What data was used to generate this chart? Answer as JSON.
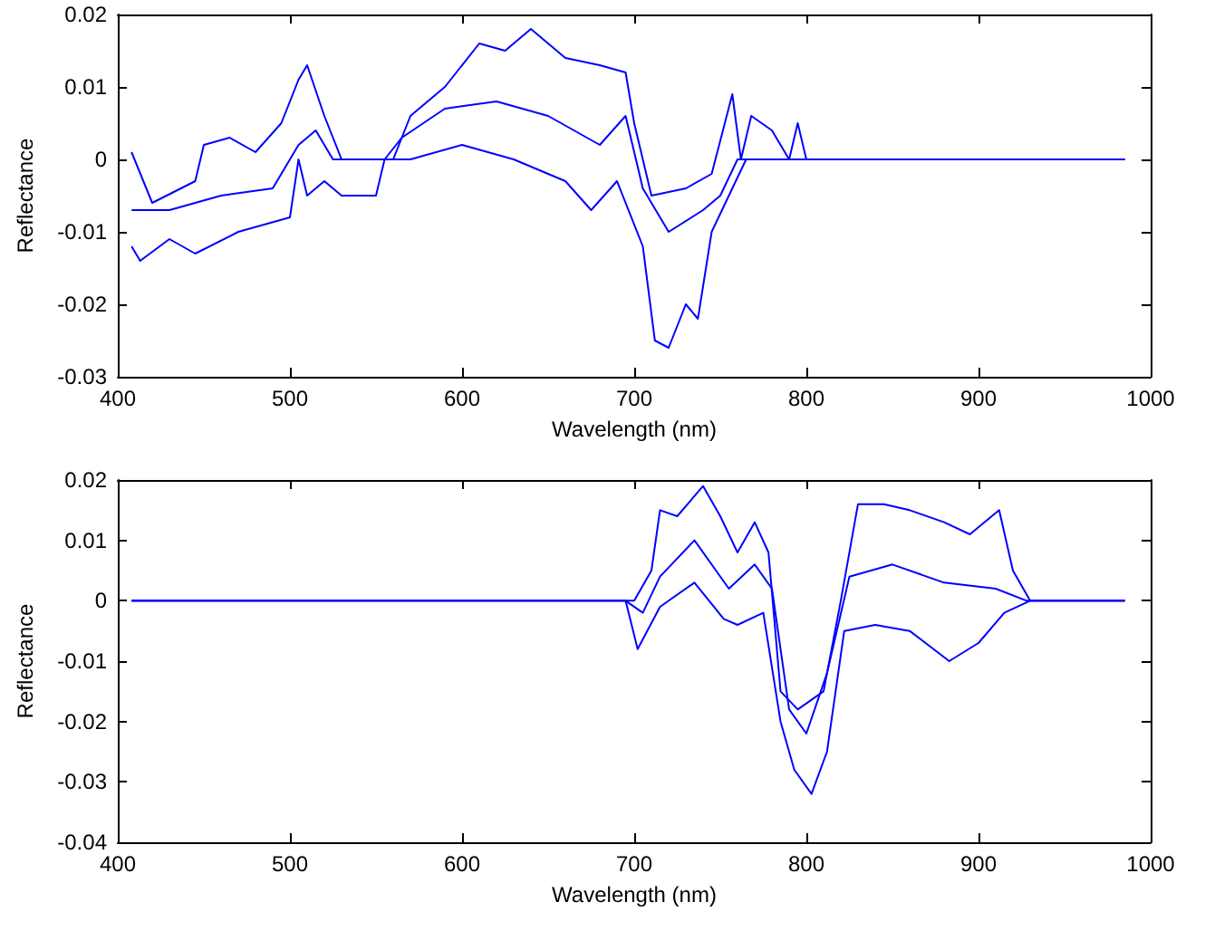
{
  "chart_data": [
    {
      "type": "line",
      "xlabel": "Wavelength (nm)",
      "ylabel": "Reflectance",
      "xlim": [
        400,
        1000
      ],
      "xticks": [
        400,
        500,
        600,
        700,
        800,
        900,
        1000
      ],
      "ylim": [
        -0.03,
        0.02
      ],
      "yticks": [
        -0.03,
        -0.02,
        -0.01,
        0,
        0.01,
        0.02
      ],
      "marker": "none",
      "line_style": "solid",
      "series": [
        {
          "color": "#0000ff",
          "x": [
            408,
            420,
            445,
            450,
            465,
            480,
            495,
            505,
            510,
            520,
            530,
            560,
            570,
            590,
            610,
            625,
            640,
            660,
            680,
            695,
            700,
            710,
            730,
            745,
            757,
            762,
            768,
            780,
            790,
            795,
            800,
            985
          ],
          "values": [
            0.001,
            -0.006,
            -0.003,
            0.002,
            0.003,
            0.001,
            0.005,
            0.011,
            0.013,
            0.006,
            0,
            0,
            0.006,
            0.01,
            0.016,
            0.015,
            0.018,
            0.014,
            0.013,
            0.012,
            0.005,
            -0.005,
            -0.004,
            -0.002,
            0.009,
            0,
            0.006,
            0.004,
            0,
            0.005,
            0,
            0
          ]
        },
        {
          "color": "#0000ff",
          "x": [
            408,
            430,
            460,
            490,
            505,
            515,
            525,
            555,
            565,
            590,
            620,
            650,
            680,
            695,
            705,
            720,
            740,
            750,
            760,
            780,
            985
          ],
          "values": [
            -0.007,
            -0.007,
            -0.005,
            -0.004,
            0.002,
            0.004,
            0,
            0,
            0.003,
            0.007,
            0.008,
            0.006,
            0.002,
            0.006,
            -0.004,
            -0.01,
            -0.007,
            -0.005,
            0,
            0,
            0
          ]
        },
        {
          "color": "#0000ff",
          "x": [
            408,
            413,
            430,
            445,
            470,
            500,
            505,
            510,
            520,
            530,
            550,
            555,
            570,
            600,
            630,
            660,
            675,
            690,
            705,
            712,
            720,
            730,
            737,
            745,
            755,
            765,
            985
          ],
          "values": [
            -0.012,
            -0.014,
            -0.011,
            -0.013,
            -0.01,
            -0.008,
            0,
            -0.005,
            -0.003,
            -0.005,
            -0.005,
            0,
            0,
            0.002,
            0,
            -0.003,
            -0.007,
            -0.003,
            -0.012,
            -0.025,
            -0.026,
            -0.02,
            -0.022,
            -0.01,
            -0.005,
            0,
            0
          ]
        }
      ]
    },
    {
      "type": "line",
      "xlabel": "Wavelength (nm)",
      "ylabel": "Reflectance",
      "xlim": [
        400,
        1000
      ],
      "xticks": [
        400,
        500,
        600,
        700,
        800,
        900,
        1000
      ],
      "ylim": [
        -0.04,
        0.02
      ],
      "yticks": [
        -0.04,
        -0.03,
        -0.02,
        -0.01,
        0,
        0.01,
        0.02
      ],
      "marker": "none",
      "line_style": "solid",
      "series": [
        {
          "color": "#0000ff",
          "x": [
            408,
            700,
            710,
            715,
            725,
            740,
            750,
            760,
            770,
            778,
            785,
            795,
            810,
            820,
            830,
            845,
            860,
            880,
            895,
            912,
            920,
            930,
            985
          ],
          "values": [
            0,
            0,
            0.005,
            0.015,
            0.014,
            0.019,
            0.014,
            0.008,
            0.013,
            0.008,
            -0.015,
            -0.018,
            -0.015,
            0,
            0.016,
            0.016,
            0.015,
            0.013,
            0.011,
            0.015,
            0.005,
            0,
            0
          ]
        },
        {
          "color": "#0000ff",
          "x": [
            408,
            695,
            705,
            715,
            735,
            755,
            770,
            780,
            790,
            800,
            812,
            825,
            850,
            880,
            910,
            928,
            985
          ],
          "values": [
            0,
            0,
            -0.002,
            0.004,
            0.01,
            0.002,
            0.006,
            0.002,
            -0.018,
            -0.022,
            -0.012,
            0.004,
            0.006,
            0.003,
            0.002,
            0,
            0
          ]
        },
        {
          "color": "#0000ff",
          "x": [
            408,
            695,
            702,
            715,
            735,
            752,
            760,
            775,
            785,
            793,
            803,
            812,
            822,
            840,
            860,
            883,
            900,
            915,
            930,
            985
          ],
          "values": [
            0,
            0,
            -0.008,
            -0.001,
            0.003,
            -0.003,
            -0.004,
            -0.002,
            -0.02,
            -0.028,
            -0.032,
            -0.025,
            -0.005,
            -0.004,
            -0.005,
            -0.01,
            -0.007,
            -0.002,
            0,
            0
          ]
        }
      ]
    }
  ]
}
